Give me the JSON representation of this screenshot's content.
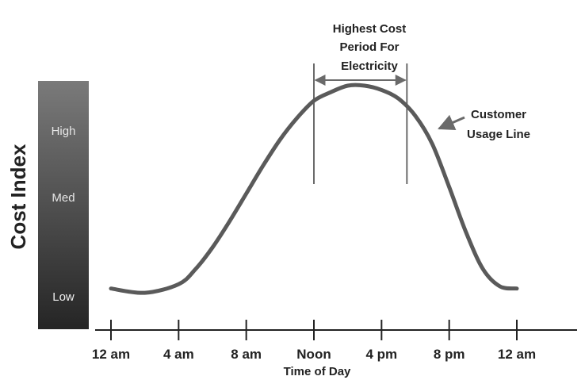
{
  "chart_data": {
    "type": "line",
    "ylabel": "Cost Index",
    "xlabel": "Time of Day",
    "x_ticks": [
      "12 am",
      "4 am",
      "8 am",
      "Noon",
      "4 pm",
      "8 pm",
      "12 am"
    ],
    "x_tick_hours": [
      0,
      4,
      8,
      12,
      16,
      20,
      24
    ],
    "y_levels": [
      "High",
      "Med",
      "Low"
    ],
    "series": [
      {
        "name": "Customer Usage Line",
        "x": [
          0,
          2,
          4,
          5,
          6,
          7,
          8,
          9,
          10,
          11,
          12,
          13,
          14,
          15,
          16,
          17,
          18,
          19,
          20,
          21,
          22,
          23,
          24
        ],
        "y": [
          0.06,
          0.04,
          0.08,
          0.15,
          0.25,
          0.37,
          0.5,
          0.63,
          0.75,
          0.85,
          0.93,
          0.97,
          1.0,
          1.0,
          0.98,
          0.94,
          0.86,
          0.73,
          0.53,
          0.32,
          0.15,
          0.07,
          0.06
        ]
      }
    ],
    "annotations": {
      "peak_band": {
        "label_lines": [
          "Highest Cost",
          "Period For",
          "Electricity"
        ],
        "x_start": 12,
        "x_end": 17.5
      },
      "usage_line": {
        "label_lines": [
          "Customer",
          "Usage Line"
        ]
      }
    },
    "colors": {
      "line": "#5a5a5a",
      "axis": "#222222",
      "bar_top": "#707070",
      "bar_bottom": "#2a2a2a",
      "bar_text": "#e8e8e8"
    }
  }
}
